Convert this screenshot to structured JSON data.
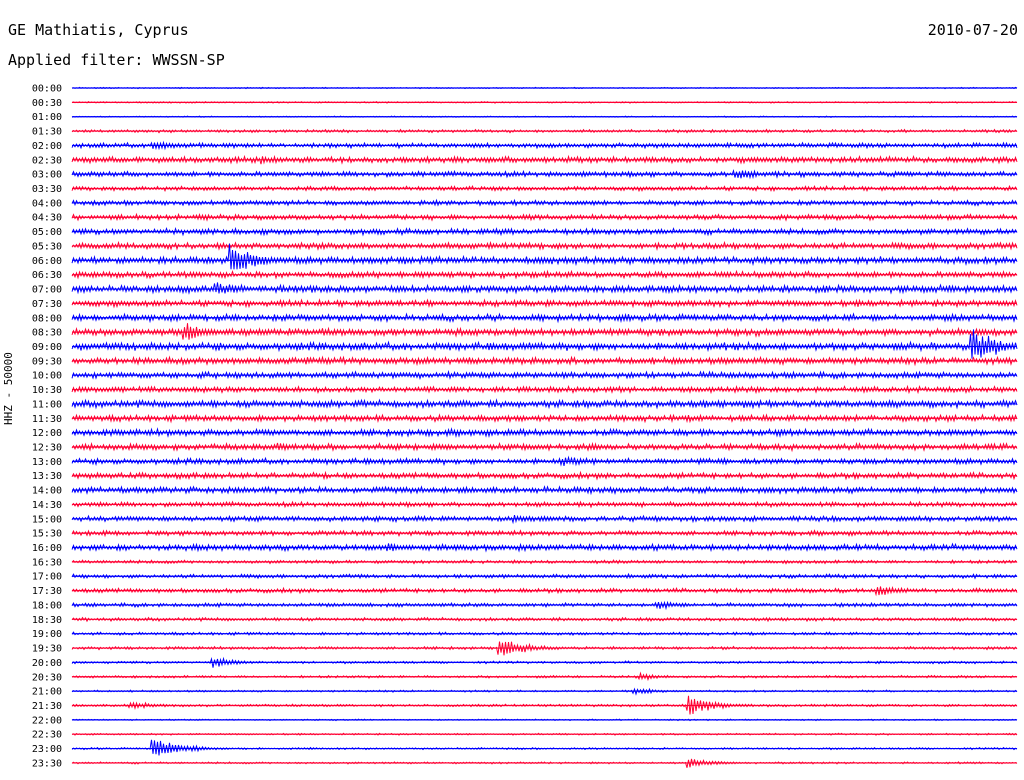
{
  "header": {
    "station": "GE Mathiatis, Cyprus",
    "date": "2010-07-20",
    "filter": "Applied filter: WWSSN-SP"
  },
  "axis_label": "HHZ - 50000",
  "colors": {
    "odd": "#0000ff",
    "even": "#ff0033"
  },
  "chart_data": {
    "type": "line",
    "ylabel": "HHZ - 50000",
    "trace_labels": [
      "00:00",
      "00:30",
      "01:00",
      "01:30",
      "02:00",
      "02:30",
      "03:00",
      "03:30",
      "04:00",
      "04:30",
      "05:00",
      "05:30",
      "06:00",
      "06:30",
      "07:00",
      "07:30",
      "08:00",
      "08:30",
      "09:00",
      "09:30",
      "10:00",
      "10:30",
      "11:00",
      "11:30",
      "12:00",
      "12:30",
      "13:00",
      "13:30",
      "14:00",
      "14:30",
      "15:00",
      "15:30",
      "16:00",
      "16:30",
      "17:00",
      "17:30",
      "18:00",
      "18:30",
      "19:00",
      "19:30",
      "20:00",
      "20:30",
      "21:00",
      "21:30",
      "22:00",
      "22:30",
      "23:00",
      "23:30"
    ],
    "trace_minutes": 30,
    "noise_levels": [
      0.5,
      0.6,
      0.5,
      1.2,
      2.0,
      2.5,
      2.2,
      1.8,
      2.0,
      2.2,
      2.4,
      2.6,
      3.0,
      2.6,
      3.0,
      2.6,
      2.8,
      3.0,
      3.2,
      2.8,
      2.6,
      2.4,
      3.0,
      2.6,
      2.8,
      2.6,
      2.4,
      2.4,
      2.6,
      2.0,
      2.2,
      2.0,
      2.6,
      1.4,
      1.6,
      1.8,
      1.6,
      1.4,
      1.2,
      1.2,
      1.0,
      1.0,
      0.8,
      1.0,
      0.6,
      0.7,
      0.8,
      0.8
    ],
    "events": [
      {
        "trace": "02:00",
        "minute": 2.5,
        "amplitude": 6
      },
      {
        "trace": "02:30",
        "minute": 6.0,
        "amplitude": 6
      },
      {
        "trace": "03:00",
        "minute": 21.0,
        "amplitude": 7
      },
      {
        "trace": "06:00",
        "minute": 5.0,
        "amplitude": 18
      },
      {
        "trace": "07:00",
        "minute": 4.5,
        "amplitude": 9
      },
      {
        "trace": "08:30",
        "minute": 3.5,
        "amplitude": 12
      },
      {
        "trace": "09:00",
        "minute": 28.5,
        "amplitude": 22
      },
      {
        "trace": "12:30",
        "minute": 6.5,
        "amplitude": 6
      },
      {
        "trace": "13:00",
        "minute": 15.5,
        "amplitude": 7
      },
      {
        "trace": "15:00",
        "minute": 14.0,
        "amplitude": 5
      },
      {
        "trace": "16:00",
        "minute": 10.0,
        "amplitude": 6
      },
      {
        "trace": "17:30",
        "minute": 25.5,
        "amplitude": 7
      },
      {
        "trace": "18:00",
        "minute": 18.5,
        "amplitude": 6
      },
      {
        "trace": "19:30",
        "minute": 13.5,
        "amplitude": 12
      },
      {
        "trace": "20:00",
        "minute": 4.4,
        "amplitude": 6
      },
      {
        "trace": "20:30",
        "minute": 18.0,
        "amplitude": 4
      },
      {
        "trace": "21:00",
        "minute": 17.8,
        "amplitude": 4
      },
      {
        "trace": "21:30",
        "minute": 19.5,
        "amplitude": 12
      },
      {
        "trace": "21:30",
        "minute": 1.8,
        "amplitude": 5
      },
      {
        "trace": "23:00",
        "minute": 2.5,
        "amplitude": 14
      },
      {
        "trace": "23:30",
        "minute": 19.5,
        "amplitude": 6
      }
    ]
  }
}
